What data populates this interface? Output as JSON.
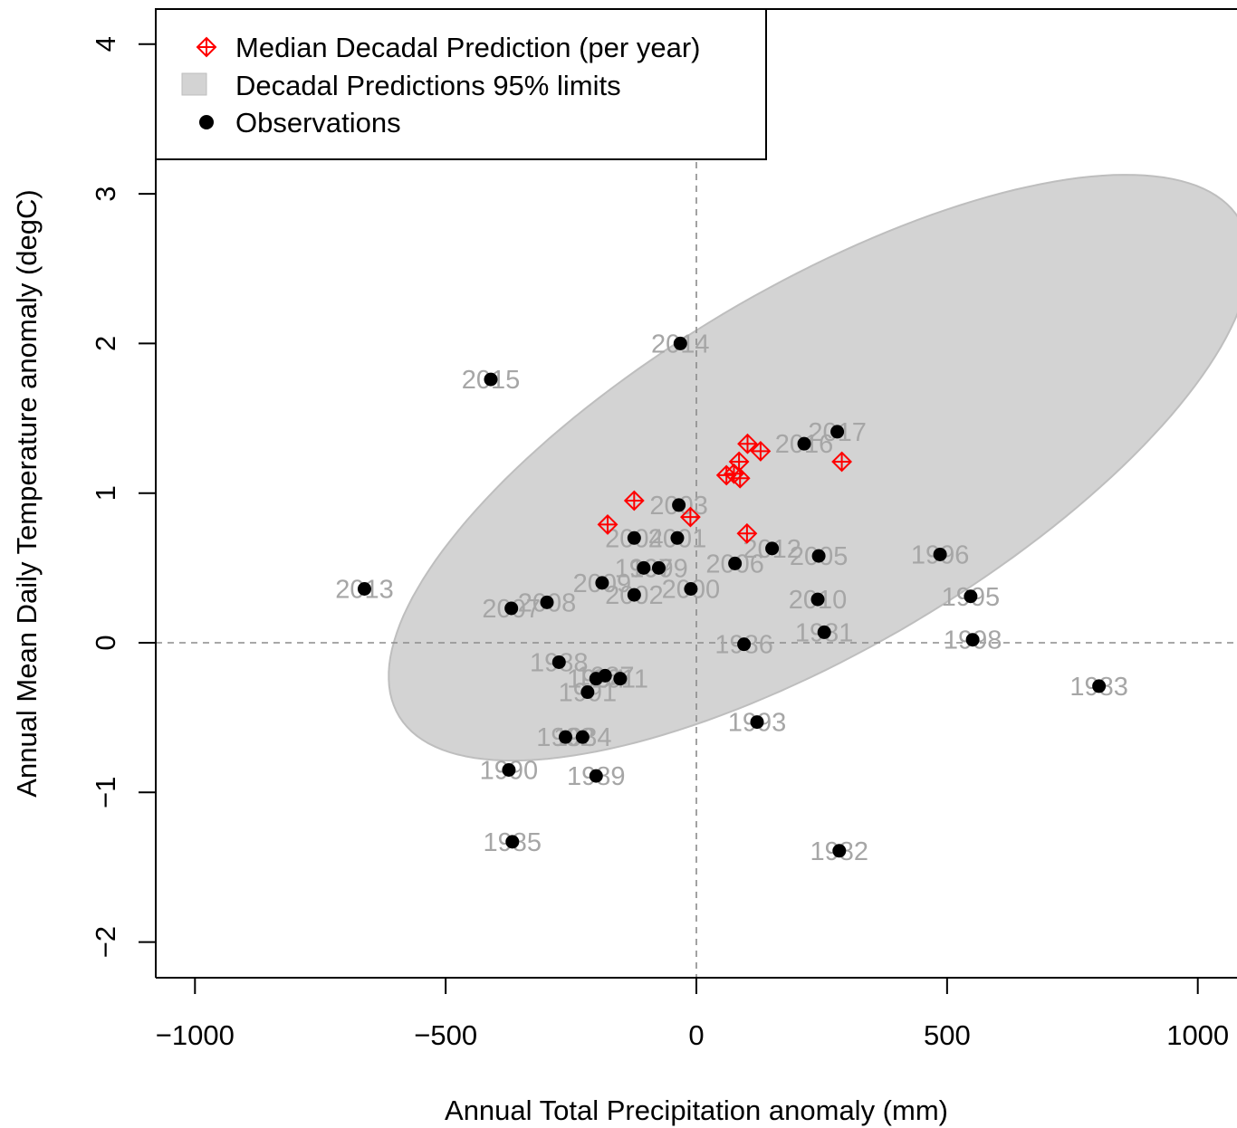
{
  "chart_data": {
    "type": "scatter",
    "title": "",
    "xlabel": "Annual Total Precipitation anomaly (mm)",
    "ylabel": "Annual Mean Daily Temperature anomaly (degC)",
    "xlim": [
      -1080,
      1080
    ],
    "ylim": [
      -2.25,
      4.2
    ],
    "xticks": [
      -1000,
      -500,
      0,
      500,
      1000
    ],
    "xtick_labels": [
      "−1000",
      "−500",
      "0",
      "500",
      "1000"
    ],
    "yticks": [
      -2,
      -1,
      0,
      1,
      2,
      3,
      4
    ],
    "ytick_labels": [
      "−2",
      "−1",
      "0",
      "1",
      "2",
      "3",
      "4"
    ],
    "reference_lines": {
      "x": 0,
      "y": 0,
      "style": "dashed"
    },
    "grid": false,
    "legend": {
      "position": "top-left",
      "entries": [
        {
          "label": "Median Decadal Prediction (per year)",
          "marker": "diamond-plus",
          "color": "#ff0000"
        },
        {
          "label": "Decadal Predictions 95% limits",
          "marker": "square",
          "color": "#d3d3d3"
        },
        {
          "label": "Observations",
          "marker": "circle",
          "color": "#000000"
        }
      ]
    },
    "ellipse_95": {
      "center": [
        245,
        1.17
      ],
      "semi_axis_1": [
        830,
        1.7
      ],
      "semi_axis_2": [
        -220,
        0.97
      ],
      "fill": "#d3d3d3",
      "stroke": "#bebebe"
    },
    "predictions": {
      "color": "#ff0000",
      "points": [
        {
          "x": -177,
          "y": 0.79
        },
        {
          "x": -124,
          "y": 0.95
        },
        {
          "x": -12,
          "y": 0.84
        },
        {
          "x": 60,
          "y": 1.12
        },
        {
          "x": 75,
          "y": 1.13
        },
        {
          "x": 85,
          "y": 1.21
        },
        {
          "x": 87,
          "y": 1.1
        },
        {
          "x": 102,
          "y": 1.33
        },
        {
          "x": 128,
          "y": 1.28
        },
        {
          "x": 101,
          "y": 0.73
        },
        {
          "x": 290,
          "y": 1.21
        }
      ]
    },
    "observations": {
      "color": "#000000",
      "points": [
        {
          "year": "1981",
          "x": 255,
          "y": 0.07
        },
        {
          "year": "1982",
          "x": 285,
          "y": -1.39
        },
        {
          "year": "1983",
          "x": 803,
          "y": -0.29
        },
        {
          "year": "1984",
          "x": -227,
          "y": -0.63
        },
        {
          "year": "1985",
          "x": -367,
          "y": -1.33
        },
        {
          "year": "1986",
          "x": 95,
          "y": -0.01
        },
        {
          "year": "1987",
          "x": -182,
          "y": -0.22
        },
        {
          "year": "1988",
          "x": -274,
          "y": -0.13
        },
        {
          "year": "1989",
          "x": -200,
          "y": -0.89
        },
        {
          "year": "1990",
          "x": -374,
          "y": -0.85
        },
        {
          "year": "1991",
          "x": -217,
          "y": -0.33
        },
        {
          "year": "1992",
          "x": -261,
          "y": -0.63
        },
        {
          "year": "1993",
          "x": 121,
          "y": -0.53
        },
        {
          "year": "1994",
          "x": -200,
          "y": -0.24
        },
        {
          "year": "1995",
          "x": 547,
          "y": 0.31
        },
        {
          "year": "1996",
          "x": 486,
          "y": 0.59
        },
        {
          "year": "1997",
          "x": -105,
          "y": 0.5
        },
        {
          "year": "1998",
          "x": 551,
          "y": 0.02
        },
        {
          "year": "1999",
          "x": -75,
          "y": 0.5
        },
        {
          "year": "2000",
          "x": -11,
          "y": 0.36
        },
        {
          "year": "2001",
          "x": -38,
          "y": 0.7
        },
        {
          "year": "2002",
          "x": -124,
          "y": 0.32
        },
        {
          "year": "2003",
          "x": -35,
          "y": 0.92
        },
        {
          "year": "2004",
          "x": -124,
          "y": 0.7
        },
        {
          "year": "2005",
          "x": 244,
          "y": 0.58
        },
        {
          "year": "2006",
          "x": 77,
          "y": 0.53
        },
        {
          "year": "2007",
          "x": -369,
          "y": 0.23
        },
        {
          "year": "2008",
          "x": -298,
          "y": 0.27
        },
        {
          "year": "2009",
          "x": -188,
          "y": 0.4
        },
        {
          "year": "2010",
          "x": 242,
          "y": 0.29
        },
        {
          "year": "2011",
          "x": -152,
          "y": -0.24
        },
        {
          "year": "2012",
          "x": 151,
          "y": 0.63
        },
        {
          "year": "2013",
          "x": -662,
          "y": 0.36
        },
        {
          "year": "2014",
          "x": -32,
          "y": 2.0
        },
        {
          "year": "2015",
          "x": -410,
          "y": 1.76
        },
        {
          "year": "2016",
          "x": 215,
          "y": 1.33
        },
        {
          "year": "2017",
          "x": 281,
          "y": 1.41
        }
      ]
    }
  }
}
